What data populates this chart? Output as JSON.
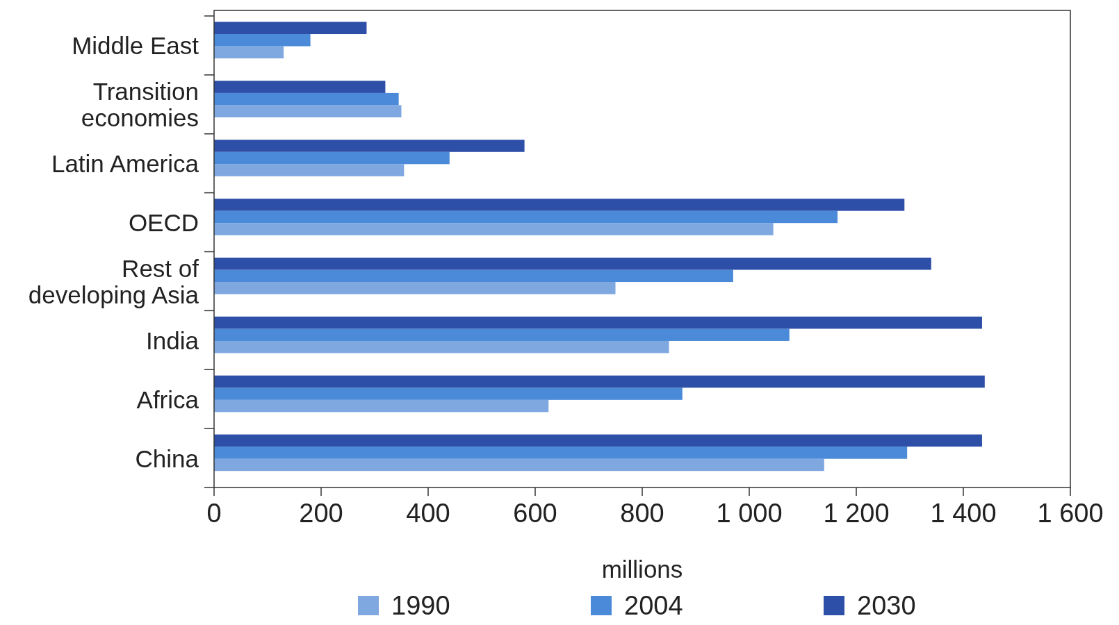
{
  "chart_data": {
    "type": "bar",
    "orientation": "horizontal",
    "xlabel": "millions",
    "categories": [
      "Middle East",
      "Transition economies",
      "Latin America",
      "OECD",
      "Rest of developing Asia",
      "India",
      "Africa",
      "China"
    ],
    "series": [
      {
        "name": "1990",
        "color": "#7fa8e0",
        "values": [
          130,
          350,
          355,
          1045,
          750,
          850,
          625,
          1140
        ]
      },
      {
        "name": "2004",
        "color": "#4a8ad8",
        "values": [
          180,
          345,
          440,
          1165,
          970,
          1075,
          875,
          1295
        ]
      },
      {
        "name": "2030",
        "color": "#2e4fa8",
        "values": [
          285,
          320,
          580,
          1290,
          1340,
          1435,
          1440,
          1435
        ]
      }
    ],
    "xlim": [
      0,
      1600
    ],
    "xticks": [
      0,
      200,
      400,
      600,
      800,
      {
        "value": 1000,
        "label": "1 000"
      },
      {
        "value": 1200,
        "label": "1 200"
      },
      {
        "value": 1400,
        "label": "1 400"
      },
      {
        "value": 1600,
        "label": "1 600"
      }
    ],
    "grid": false,
    "legend": "bottom"
  }
}
